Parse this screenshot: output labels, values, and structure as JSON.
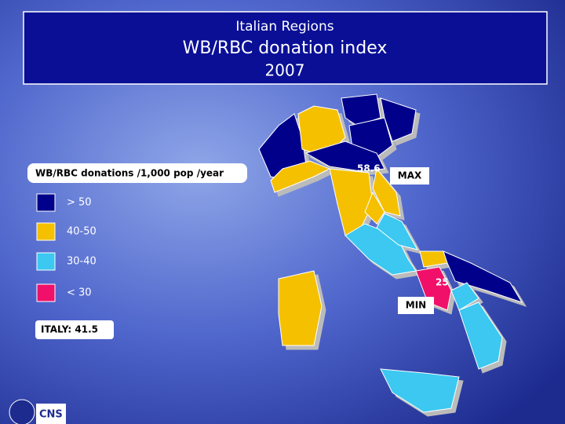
{
  "header": {
    "line1": "Italian Regions",
    "title": "WB/RBC donation index",
    "year": "2007"
  },
  "legend": {
    "title": "WB/RBC donations /1,000 pop /year",
    "items": [
      {
        "label": "> 50",
        "color": "#00008b"
      },
      {
        "label": "40-50",
        "color": "#f5c000"
      },
      {
        "label": "30-40",
        "color": "#3cc8f0"
      },
      {
        "label": "< 30",
        "color": "#f0106a"
      }
    ]
  },
  "national": "ITALY: 41.5",
  "map": {
    "max_value": "58.6",
    "max_label": "MAX",
    "min_value": "25",
    "min_label": "MIN"
  },
  "footer": "CNS"
}
